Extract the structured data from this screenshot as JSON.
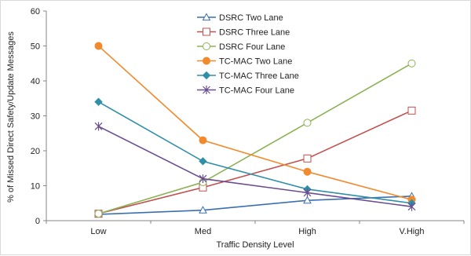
{
  "chart_data": {
    "type": "line",
    "title": "",
    "xlabel": "Traffic Density Level",
    "ylabel": "% of Missed Direct Safety/Update Messages",
    "categories": [
      "Low",
      "Med",
      "High",
      "V.High"
    ],
    "ylim": [
      0,
      60
    ],
    "yticks": [
      0,
      10,
      20,
      30,
      40,
      50,
      60
    ],
    "grid": false,
    "legend_position": "top-center",
    "series": [
      {
        "name": "DSRC Two Lane",
        "values": [
          1.8,
          3.0,
          5.8,
          7.0
        ],
        "color": "#3a6fb0",
        "marker": "triangle-open"
      },
      {
        "name": "DSRC Three Lane",
        "values": [
          2.0,
          9.5,
          17.8,
          31.5
        ],
        "color": "#c0504d",
        "marker": "square-open"
      },
      {
        "name": "DSRC Four Lane",
        "values": [
          2.0,
          11.0,
          28.0,
          45.0
        ],
        "color": "#8db255",
        "marker": "circle-open"
      },
      {
        "name": "TC-MAC Two Lane",
        "values": [
          50.0,
          23.0,
          14.0,
          6.0
        ],
        "color": "#f08a2c",
        "marker": "circle-filled"
      },
      {
        "name": "TC-MAC Three Lane",
        "values": [
          34.0,
          17.0,
          9.0,
          5.0
        ],
        "color": "#2f8fa8",
        "marker": "diamond-filled"
      },
      {
        "name": "TC-MAC Four Lane",
        "values": [
          27.0,
          12.0,
          8.0,
          4.0
        ],
        "color": "#6a4e8e",
        "marker": "star"
      }
    ]
  }
}
